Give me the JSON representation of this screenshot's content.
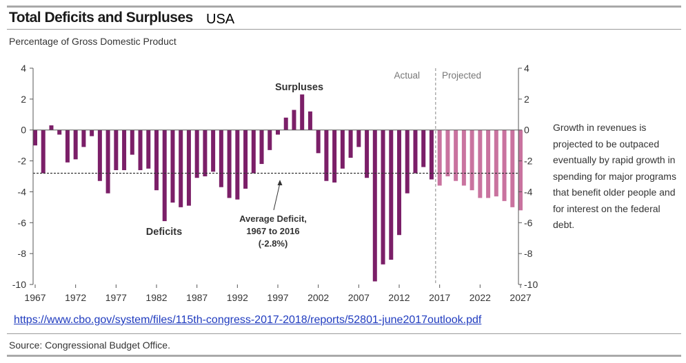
{
  "header": {
    "title": "Total Deficits and Surpluses",
    "country": "USA",
    "subtitle": "Percentage of Gross Domestic Product"
  },
  "side_note": "Growth in revenues is projected to be outpaced eventually by rapid growth in spending for major programs that benefit older people and for interest on the federal debt.",
  "link_text": "https://www.cbo.gov/system/files/115th-congress-2017-2018/reports/52801-june2017outlook.pdf",
  "source": "Source: Congressional Budget Office.",
  "colors": {
    "actual": "#7b1f68",
    "projected": "#c9739f",
    "axis": "#555555"
  },
  "chart_data": {
    "type": "bar",
    "x": [
      1967,
      1968,
      1969,
      1970,
      1971,
      1972,
      1973,
      1974,
      1975,
      1976,
      1977,
      1978,
      1979,
      1980,
      1981,
      1982,
      1983,
      1984,
      1985,
      1986,
      1987,
      1988,
      1989,
      1990,
      1991,
      1992,
      1993,
      1994,
      1995,
      1996,
      1997,
      1998,
      1999,
      2000,
      2001,
      2002,
      2003,
      2004,
      2005,
      2006,
      2007,
      2008,
      2009,
      2010,
      2011,
      2012,
      2013,
      2014,
      2015,
      2016,
      2017,
      2018,
      2019,
      2020,
      2021,
      2022,
      2023,
      2024,
      2025,
      2026,
      2027
    ],
    "series": [
      {
        "name": "Actual",
        "values": [
          -1.0,
          -2.8,
          0.3,
          -0.3,
          -2.1,
          -1.9,
          -1.1,
          -0.4,
          -3.3,
          -4.1,
          -2.6,
          -2.6,
          -1.6,
          -2.6,
          -2.5,
          -3.9,
          -5.9,
          -4.7,
          -5.0,
          -4.9,
          -3.1,
          -3.0,
          -2.7,
          -3.7,
          -4.4,
          -4.5,
          -3.8,
          -2.8,
          -2.2,
          -1.3,
          -0.3,
          0.8,
          1.3,
          2.3,
          1.2,
          -1.5,
          -3.3,
          -3.4,
          -2.5,
          -1.8,
          -1.1,
          -3.1,
          -9.8,
          -8.7,
          -8.4,
          -6.8,
          -4.1,
          -2.8,
          -2.4,
          -3.2,
          null,
          null,
          null,
          null,
          null,
          null,
          null,
          null,
          null,
          null,
          null
        ]
      },
      {
        "name": "Projected",
        "values": [
          null,
          null,
          null,
          null,
          null,
          null,
          null,
          null,
          null,
          null,
          null,
          null,
          null,
          null,
          null,
          null,
          null,
          null,
          null,
          null,
          null,
          null,
          null,
          null,
          null,
          null,
          null,
          null,
          null,
          null,
          null,
          null,
          null,
          null,
          null,
          null,
          null,
          null,
          null,
          null,
          null,
          null,
          null,
          null,
          null,
          null,
          null,
          null,
          null,
          null,
          -3.6,
          -3.0,
          -3.3,
          -3.6,
          -3.9,
          -4.4,
          -4.4,
          -4.3,
          -4.6,
          -5.0,
          -5.2
        ]
      }
    ],
    "x_ticks": [
      "1967",
      "1972",
      "1977",
      "1982",
      "1987",
      "1992",
      "1997",
      "2002",
      "2007",
      "2012",
      "2017",
      "2022",
      "2027"
    ],
    "y_ticks": [
      "4",
      "2",
      "0",
      "-2",
      "-4",
      "-6",
      "-8",
      "-10"
    ],
    "ylim": [
      -10,
      4
    ],
    "xlabel": "",
    "ylabel": "",
    "reference_line": {
      "value": -2.8
    },
    "annotations": {
      "surpluses": "Surpluses",
      "deficits": "Deficits",
      "actual": "Actual",
      "projected": "Projected",
      "average_line1": "Average Deficit,",
      "average_line2": "1967 to 2016",
      "average_line3": "(-2.8%)"
    }
  }
}
